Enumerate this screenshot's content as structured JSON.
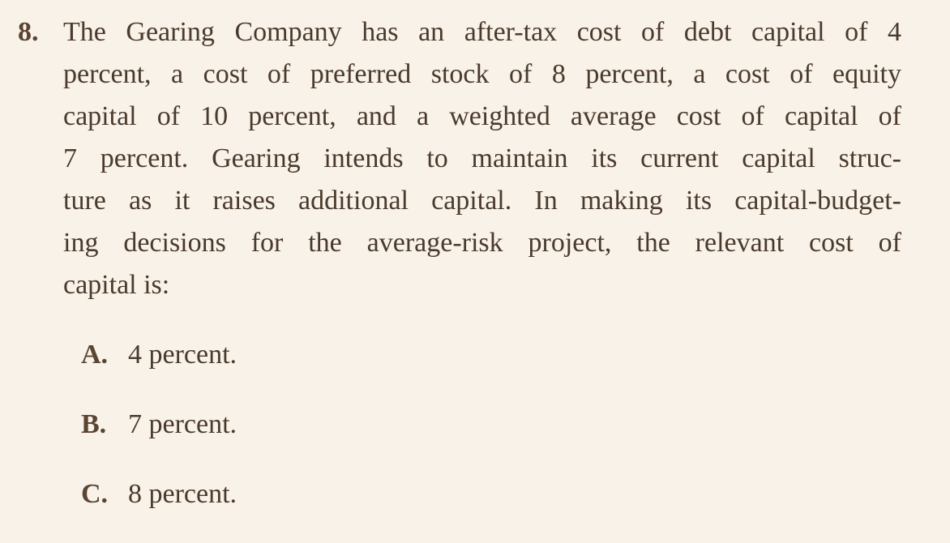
{
  "question": {
    "number": "8.",
    "lines": [
      "The Gearing Company has an after-tax cost of debt capital of 4",
      "percent, a cost of preferred stock of 8 percent, a cost of equity",
      "capital of 10 percent, and a weighted average cost of capital of",
      "7 percent. Gearing intends to maintain its current capital struc-",
      "ture as it raises additional capital. In making its capital-budget-",
      "ing decisions for the average-risk project, the relevant cost of",
      "capital is:"
    ]
  },
  "options": [
    {
      "letter": "A.",
      "text": "4 percent."
    },
    {
      "letter": "B.",
      "text": "7 percent."
    },
    {
      "letter": "C.",
      "text": "8 percent."
    }
  ]
}
